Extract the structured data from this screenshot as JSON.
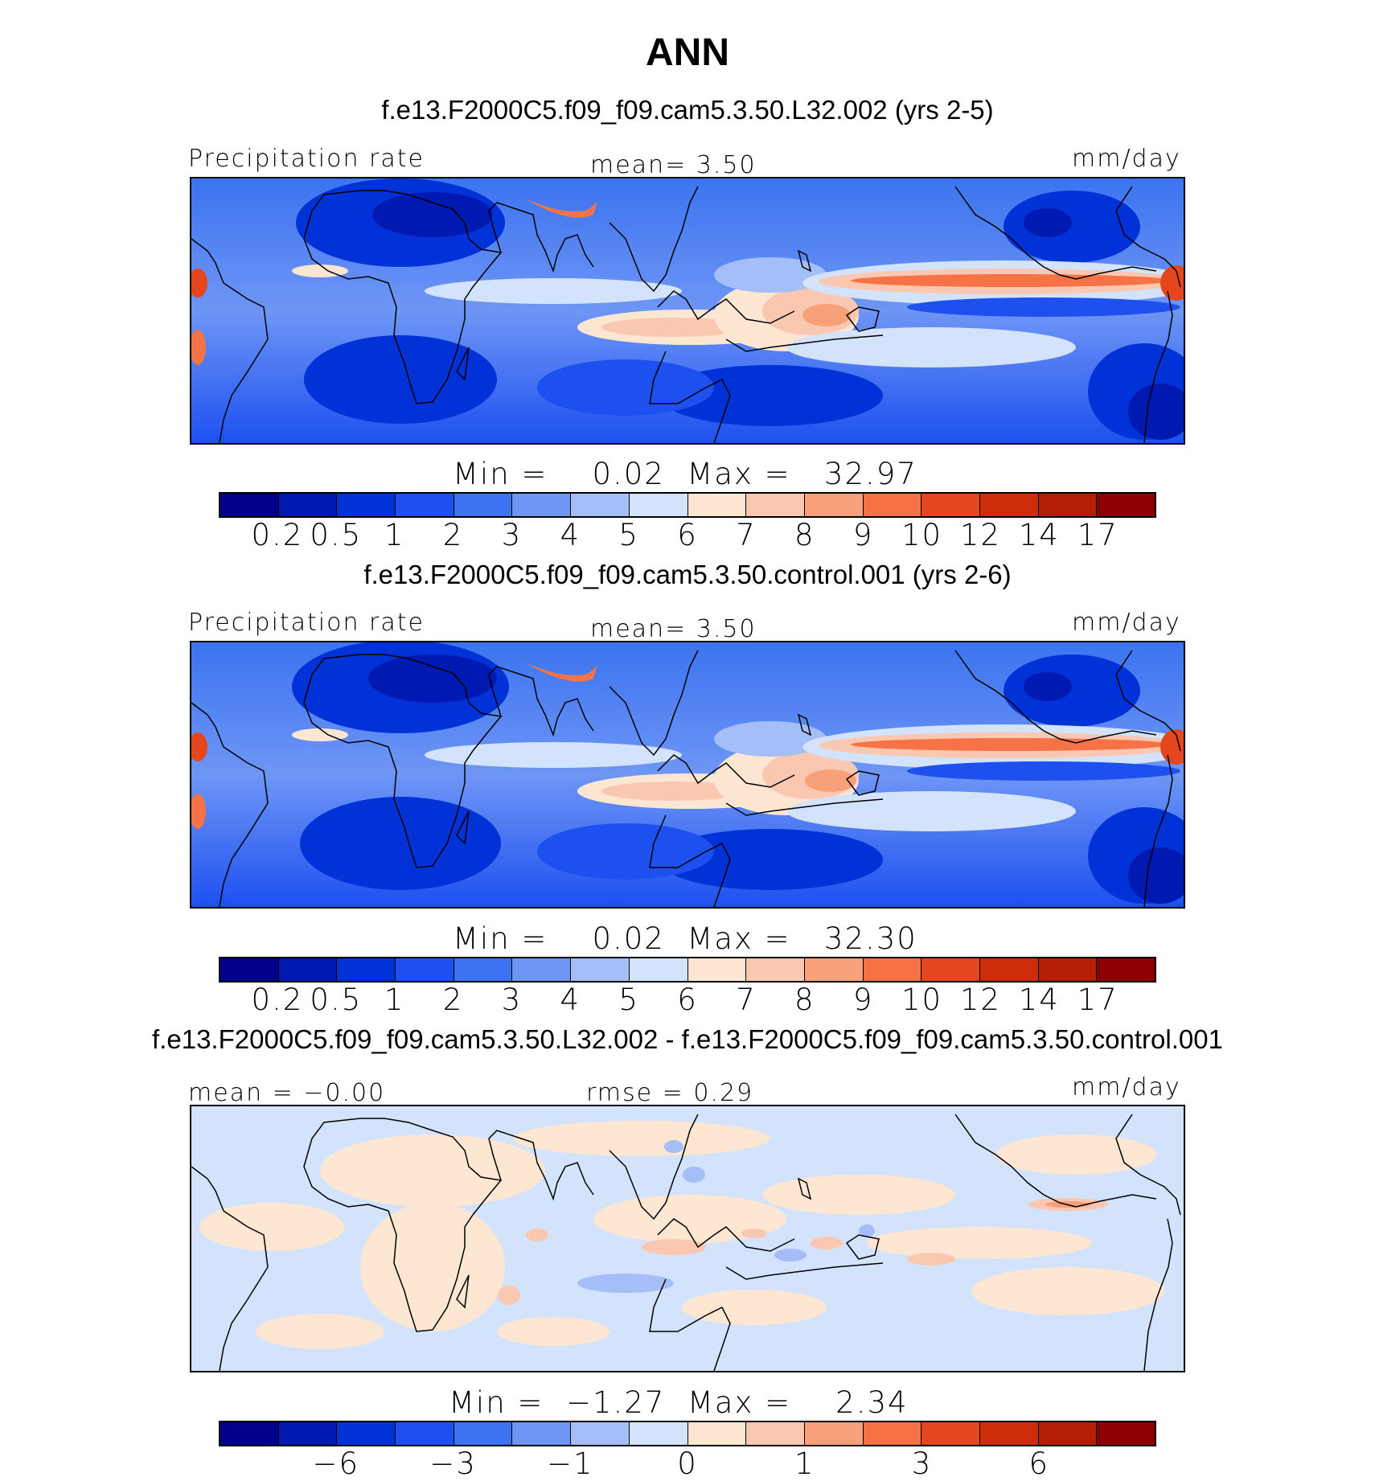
{
  "page_title": "ANN",
  "chart_data": [
    {
      "type": "heatmap",
      "title": "f.e13.F2000C5.f09_f09.cam5.3.50.L32.002 (yrs 2-5)",
      "left_label": "Precipitation rate",
      "center_label": "mean=   3.50",
      "units": "mm/day",
      "mean": 3.5,
      "min": 0.02,
      "max": 32.97,
      "minmax_label": "Min =    0.02  Max =   32.97",
      "colorbar_levels": [
        "0.2",
        "0.5",
        "1",
        "2",
        "3",
        "4",
        "5",
        "6",
        "7",
        "8",
        "9",
        "10",
        "12",
        "14",
        "17"
      ]
    },
    {
      "type": "heatmap",
      "title": "f.e13.F2000C5.f09_f09.cam5.3.50.control.001 (yrs 2-6)",
      "left_label": "Precipitation rate",
      "center_label": "mean=   3.50",
      "units": "mm/day",
      "mean": 3.5,
      "min": 0.02,
      "max": 32.3,
      "minmax_label": "Min =    0.02  Max =   32.30",
      "colorbar_levels": [
        "0.2",
        "0.5",
        "1",
        "2",
        "3",
        "4",
        "5",
        "6",
        "7",
        "8",
        "9",
        "10",
        "12",
        "14",
        "17"
      ]
    },
    {
      "type": "heatmap",
      "title": "f.e13.F2000C5.f09_f09.cam5.3.50.L32.002 - f.e13.F2000C5.f09_f09.cam5.3.50.control.001",
      "left_label": "mean =  −0.00",
      "center_label": "rmse =   0.29",
      "units": "mm/day",
      "mean": -0.0,
      "rmse": 0.29,
      "min": -1.27,
      "max": 2.34,
      "minmax_label": "Min =  −1.27  Max =    2.34",
      "colorbar_levels": [
        "−6",
        "−3",
        "−1",
        "0",
        "1",
        "3",
        "6"
      ]
    }
  ],
  "colors": {
    "colorbar": [
      "#00008b",
      "#0019b0",
      "#0032d8",
      "#1e50f0",
      "#3c73f0",
      "#6e96f5",
      "#a5bef8",
      "#d2e3fb",
      "#fde6d2",
      "#fac8b0",
      "#f8a07a",
      "#f57346",
      "#e6461e",
      "#cd2d0a",
      "#b41e05",
      "#8b0000"
    ]
  }
}
